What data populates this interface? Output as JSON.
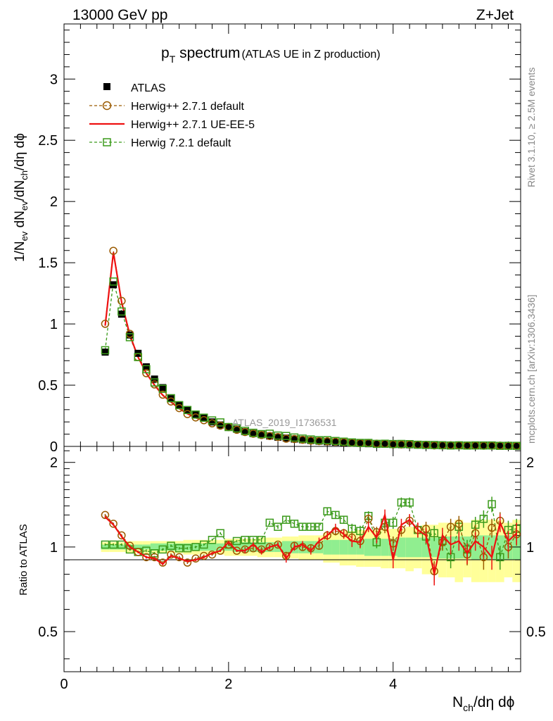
{
  "header": {
    "left": "13000 GeV pp",
    "right": "Z+Jet"
  },
  "side": {
    "rivet": "Rivet 3.1.10, ≥ 2.5M events",
    "mcplots": "mcplots.cern.ch [arXiv:1306.3436]"
  },
  "watermark": "ATLAS_2019_I1736531",
  "title": {
    "main": "p",
    "sub": "T",
    "rest": " spectrum",
    "small": "(ATLAS UE in Z production)"
  },
  "ylabel_main": "1/N_ev dN_ev/dN_ch/dη dϕ",
  "ylabel_ratio": "Ratio to ATLAS",
  "xlabel": "N_ch/dη dϕ",
  "legend": [
    {
      "label": "ATLAS",
      "key": "data"
    },
    {
      "label": "Herwig++ 2.7.1 default",
      "key": "h271"
    },
    {
      "label": "Herwig++ 2.7.1 UE-EE-5",
      "key": "ue5"
    },
    {
      "label": "Herwig 7.2.1 default",
      "key": "h721"
    }
  ],
  "colors": {
    "data": "#000000",
    "h271": "#9a5a00",
    "ue5": "#ee1111",
    "h721": "#3a9a1a",
    "band_inner": "#90ee90",
    "band_outer": "#ffff99"
  },
  "chart_data": {
    "type": "scatter",
    "x": [
      0.5,
      0.6,
      0.7,
      0.8,
      0.9,
      1.0,
      1.1,
      1.2,
      1.3,
      1.4,
      1.5,
      1.6,
      1.7,
      1.8,
      1.9,
      2.0,
      2.1,
      2.2,
      2.3,
      2.4,
      2.5,
      2.6,
      2.7,
      2.8,
      2.9,
      3.0,
      3.1,
      3.2,
      3.3,
      3.4,
      3.5,
      3.6,
      3.7,
      3.8,
      3.9,
      4.0,
      4.1,
      4.2,
      4.3,
      4.4,
      4.5,
      4.6,
      4.7,
      4.8,
      4.9,
      5.0,
      5.1,
      5.2,
      5.3,
      5.4,
      5.5
    ],
    "bin_width": 0.1,
    "xlim": [
      0,
      5.55
    ],
    "ylim_main": [
      0,
      3.45
    ],
    "ylim_ratio": [
      0.36,
      2.28
    ],
    "xticks": [
      0,
      2,
      4
    ],
    "yticks_main": [
      0,
      0.5,
      1,
      1.5,
      2,
      2.5,
      3
    ],
    "yticks_ratio": [
      0.5,
      1,
      2
    ],
    "atlas": [
      0.77,
      1.32,
      1.08,
      0.91,
      0.76,
      0.65,
      0.55,
      0.48,
      0.39,
      0.34,
      0.3,
      0.26,
      0.23,
      0.2,
      0.175,
      0.155,
      0.14,
      0.12,
      0.105,
      0.095,
      0.085,
      0.075,
      0.068,
      0.06,
      0.054,
      0.048,
      0.043,
      0.038,
      0.034,
      0.031,
      0.028,
      0.025,
      0.022,
      0.02,
      0.018,
      0.016,
      0.014,
      0.013,
      0.012,
      0.011,
      0.01,
      0.009,
      0.008,
      0.0075,
      0.007,
      0.0065,
      0.006,
      0.0055,
      0.005,
      0.0045,
      0.004
    ],
    "series": [
      {
        "name": "Herwig++ 2.7.1 default",
        "ratio": [
          1.3,
          1.21,
          1.1,
          1.01,
          0.96,
          0.92,
          0.92,
          0.88,
          0.94,
          0.92,
          0.88,
          0.91,
          0.93,
          0.94,
          0.97,
          1.02,
          0.97,
          0.98,
          0.99,
          0.98,
          1.0,
          1.02,
          0.93,
          1.01,
          1.0,
          0.99,
          1.01,
          1.1,
          1.14,
          1.12,
          1.08,
          1.05,
          1.26,
          1.13,
          1.18,
          1.03,
          1.15,
          1.24,
          1.15,
          1.16,
          0.82,
          1.04,
          1.18,
          1.21,
          0.94,
          1.12,
          0.92,
          1.17,
          1.24,
          1.0,
          1.11
        ],
        "ratio_err": [
          0.01,
          0.01,
          0.01,
          0.01,
          0.01,
          0.01,
          0.01,
          0.01,
          0.01,
          0.01,
          0.01,
          0.01,
          0.01,
          0.01,
          0.01,
          0.01,
          0.01,
          0.02,
          0.02,
          0.02,
          0.02,
          0.02,
          0.03,
          0.03,
          0.03,
          0.03,
          0.03,
          0.04,
          0.04,
          0.04,
          0.05,
          0.05,
          0.05,
          0.05,
          0.06,
          0.06,
          0.06,
          0.06,
          0.07,
          0.07,
          0.07,
          0.07,
          0.08,
          0.08,
          0.08,
          0.08,
          0.09,
          0.09,
          0.09,
          0.09,
          0.1
        ]
      },
      {
        "name": "Herwig++ 2.7.1 UE-EE-5",
        "ratio": [
          1.28,
          1.2,
          1.09,
          1.0,
          0.96,
          0.92,
          0.91,
          0.87,
          0.93,
          0.91,
          0.89,
          0.9,
          0.92,
          0.95,
          0.97,
          1.04,
          0.97,
          0.97,
          1.02,
          0.96,
          1.0,
          1.02,
          0.91,
          1.0,
          1.02,
          0.97,
          1.05,
          1.1,
          1.17,
          1.11,
          1.05,
          1.04,
          1.18,
          1.08,
          1.3,
          0.9,
          1.2,
          1.25,
          1.15,
          1.1,
          0.8,
          1.1,
          1.02,
          1.05,
          0.95,
          1.05,
          1.0,
          0.92,
          1.22,
          1.05,
          1.12
        ],
        "ratio_err": [
          0.01,
          0.01,
          0.01,
          0.01,
          0.01,
          0.01,
          0.01,
          0.01,
          0.01,
          0.01,
          0.01,
          0.01,
          0.01,
          0.01,
          0.01,
          0.01,
          0.01,
          0.02,
          0.02,
          0.02,
          0.02,
          0.02,
          0.03,
          0.03,
          0.03,
          0.03,
          0.03,
          0.04,
          0.04,
          0.04,
          0.05,
          0.05,
          0.05,
          0.05,
          0.06,
          0.06,
          0.06,
          0.06,
          0.07,
          0.07,
          0.07,
          0.07,
          0.08,
          0.08,
          0.08,
          0.08,
          0.09,
          0.09,
          0.09,
          0.09,
          0.1
        ]
      },
      {
        "name": "Herwig 7.2.1 default",
        "ratio": [
          1.02,
          1.02,
          1.02,
          0.98,
          0.96,
          0.97,
          0.95,
          0.98,
          1.01,
          0.99,
          0.99,
          1.0,
          1.02,
          1.06,
          1.12,
          1.02,
          1.05,
          1.06,
          1.06,
          1.06,
          1.22,
          1.18,
          1.25,
          1.21,
          1.18,
          1.18,
          1.18,
          1.34,
          1.3,
          1.25,
          1.16,
          1.14,
          1.29,
          1.04,
          1.22,
          1.22,
          1.44,
          1.44,
          1.15,
          1.09,
          1.12,
          1.05,
          0.92,
          1.18,
          0.98,
          1.2,
          1.26,
          1.42,
          0.92,
          1.15,
          1.16
        ],
        "ratio_err": [
          0.01,
          0.01,
          0.01,
          0.01,
          0.01,
          0.01,
          0.01,
          0.01,
          0.01,
          0.01,
          0.01,
          0.01,
          0.01,
          0.01,
          0.01,
          0.01,
          0.01,
          0.02,
          0.02,
          0.02,
          0.02,
          0.02,
          0.03,
          0.03,
          0.03,
          0.03,
          0.03,
          0.04,
          0.04,
          0.04,
          0.05,
          0.05,
          0.05,
          0.05,
          0.06,
          0.06,
          0.06,
          0.06,
          0.07,
          0.07,
          0.07,
          0.07,
          0.08,
          0.08,
          0.08,
          0.08,
          0.09,
          0.09,
          0.09,
          0.09,
          0.1
        ]
      }
    ],
    "band_inner": [
      0.02,
      0.02,
      0.02,
      0.02,
      0.02,
      0.02,
      0.03,
      0.03,
      0.03,
      0.03,
      0.03,
      0.03,
      0.03,
      0.03,
      0.03,
      0.03,
      0.04,
      0.04,
      0.04,
      0.04,
      0.04,
      0.04,
      0.05,
      0.05,
      0.05,
      0.05,
      0.05,
      0.06,
      0.06,
      0.06,
      0.06,
      0.06,
      0.07,
      0.07,
      0.07,
      0.07,
      0.08,
      0.08,
      0.08,
      0.08,
      0.08,
      0.09,
      0.09,
      0.09,
      0.09,
      0.1,
      0.1,
      0.1,
      0.1,
      0.1,
      0.1
    ],
    "band_outer": [
      0.04,
      0.04,
      0.04,
      0.05,
      0.05,
      0.05,
      0.05,
      0.05,
      0.05,
      0.05,
      0.06,
      0.06,
      0.06,
      0.06,
      0.06,
      0.07,
      0.07,
      0.07,
      0.07,
      0.08,
      0.08,
      0.08,
      0.09,
      0.09,
      0.1,
      0.1,
      0.1,
      0.12,
      0.12,
      0.14,
      0.14,
      0.15,
      0.15,
      0.15,
      0.16,
      0.16,
      0.16,
      0.18,
      0.16,
      0.2,
      0.2,
      0.22,
      0.22,
      0.25,
      0.22,
      0.25,
      0.25,
      0.25,
      0.25,
      0.22,
      0.25
    ]
  }
}
